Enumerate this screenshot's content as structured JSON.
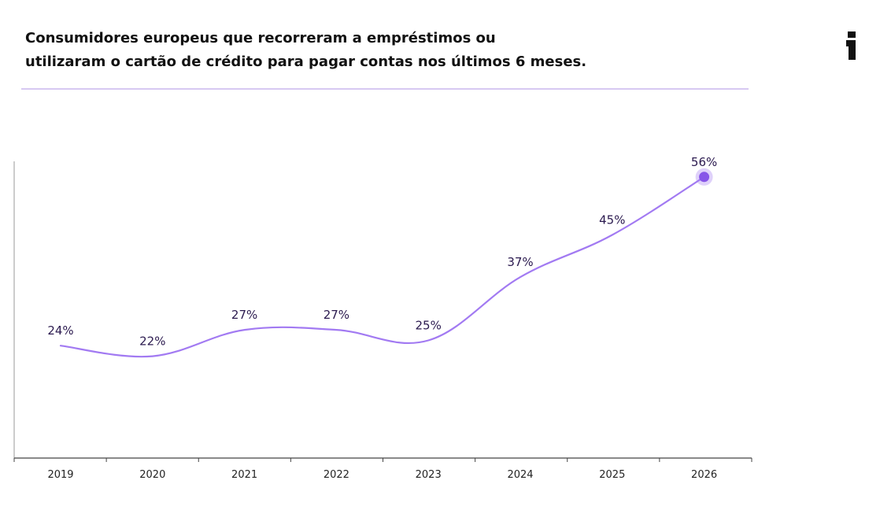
{
  "title_lines": [
    "Consumidores europeus que recorreram a empréstimos ou",
    "utilizaram o cartão de crédito para pagar contas nos últimos 6 meses."
  ],
  "colors": {
    "line": "#a27af2",
    "marker": "#8755e8",
    "label": "#2b1a4f",
    "axis": "#555555",
    "divider": "#d7c9f2"
  },
  "chart_data": {
    "type": "line",
    "title": "Consumidores europeus que recorreram a empréstimos ou utilizaram o cartão de crédito para pagar contas nos últimos 6 meses.",
    "categories": [
      "2019",
      "2020",
      "2021",
      "2022",
      "2023",
      "2024",
      "2025",
      "2026"
    ],
    "values": [
      24,
      22,
      27,
      27,
      25,
      37,
      45,
      56
    ],
    "value_labels": [
      "24%",
      "22%",
      "27%",
      "27%",
      "25%",
      "37%",
      "45%",
      "56%"
    ],
    "unit": "%",
    "grid": false,
    "legend": "none",
    "highlight_last_point": true
  }
}
